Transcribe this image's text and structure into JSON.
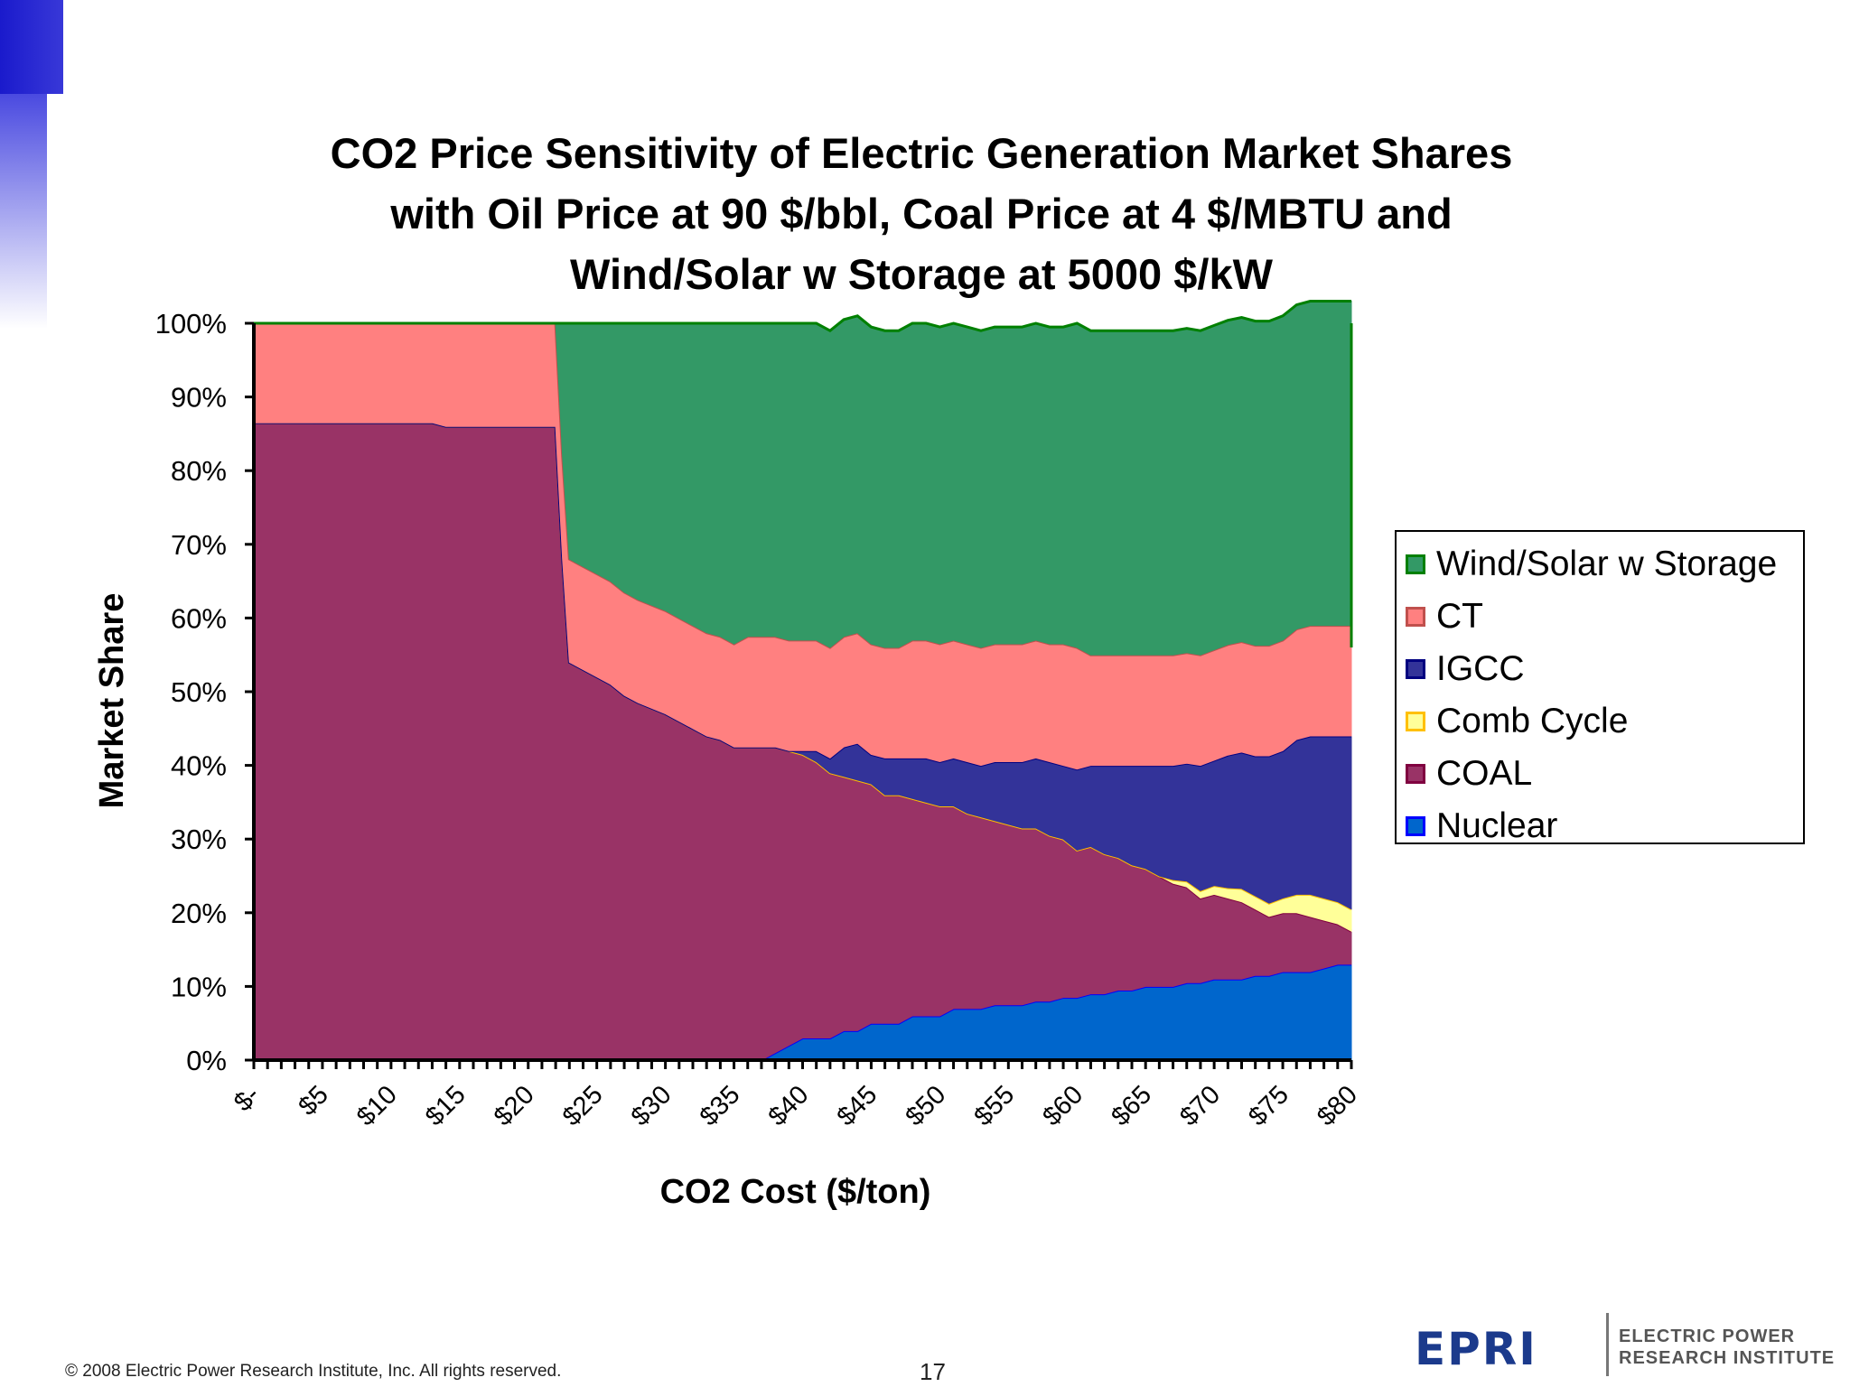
{
  "chart_data": {
    "type": "area",
    "stacked": true,
    "title": [
      "CO2 Price Sensitivity of Electric Generation Market Shares",
      "with Oil Price at 90 $/bbl, Coal Price at 4 $/MBTU and",
      "Wind/Solar w Storage at 5000 $/kW"
    ],
    "xlabel": "CO2 Cost ($/ton)",
    "ylabel": "Market Share",
    "xlim": [
      0,
      80
    ],
    "ylim": [
      0,
      100
    ],
    "x_tick_labels": [
      "$-",
      "$5",
      "$10",
      "$15",
      "$20",
      "$25",
      "$30",
      "$35",
      "$40",
      "$45",
      "$50",
      "$55",
      "$60",
      "$65",
      "$70",
      "$75",
      "$80"
    ],
    "x_tick_values": [
      0,
      5,
      10,
      15,
      20,
      25,
      30,
      35,
      40,
      45,
      50,
      55,
      60,
      65,
      70,
      75,
      80
    ],
    "y_tick_labels": [
      "0%",
      "10%",
      "20%",
      "30%",
      "40%",
      "50%",
      "60%",
      "70%",
      "80%",
      "90%",
      "100%"
    ],
    "y_tick_values": [
      0,
      10,
      20,
      30,
      40,
      50,
      60,
      70,
      80,
      90,
      100
    ],
    "legend_position": "right",
    "x": [
      0,
      5,
      10,
      13,
      14,
      20,
      22,
      22.5,
      23,
      24,
      25,
      26,
      27,
      28,
      30,
      32,
      33,
      34,
      35,
      36,
      37,
      38,
      39,
      40,
      41,
      42,
      43,
      44,
      45,
      46,
      47,
      48,
      49,
      50,
      51,
      52,
      53,
      54,
      55,
      56,
      57,
      58,
      59,
      60,
      61,
      62,
      63,
      64,
      65,
      66,
      67,
      68,
      69,
      70,
      71,
      72,
      73,
      74,
      75,
      76,
      77,
      78,
      79,
      80
    ],
    "series": [
      {
        "name": "Nuclear",
        "color": "#0066cc",
        "values": [
          0,
          0,
          0,
          0,
          0,
          0,
          0,
          0,
          0,
          0,
          0,
          0,
          0,
          0,
          0,
          0,
          0,
          0,
          0,
          0,
          0,
          1,
          2,
          3,
          3,
          3,
          4,
          4,
          5,
          5,
          5,
          6,
          6,
          6,
          7,
          7,
          7,
          7.5,
          7.5,
          7.5,
          8,
          8,
          8.5,
          8.5,
          9,
          9,
          9.5,
          9.5,
          10,
          10,
          10,
          10.5,
          10.5,
          11,
          11,
          11,
          11.5,
          11.5,
          12,
          12,
          12,
          12.5,
          13,
          13
        ]
      },
      {
        "name": "COAL",
        "color": "#993366",
        "values": [
          86.5,
          86.5,
          86.5,
          86.5,
          86,
          86,
          86,
          68,
          54,
          53,
          52,
          51,
          49.5,
          48.5,
          47,
          45,
          44,
          43.5,
          42.5,
          42.5,
          42.5,
          41.5,
          40,
          38.5,
          37.5,
          36,
          34.5,
          34,
          32.5,
          31,
          31,
          29.5,
          29,
          28.5,
          27.5,
          26.5,
          26,
          25,
          24.5,
          24,
          23.5,
          22.5,
          21.5,
          20,
          20,
          19,
          18,
          17,
          16,
          15,
          14,
          13,
          11.5,
          11.5,
          11,
          10.5,
          9,
          8,
          8,
          8,
          7.5,
          6.5,
          5.5,
          4.5
        ]
      },
      {
        "name": "Comb Cycle",
        "color": "#ffff99",
        "values": [
          0,
          0,
          0,
          0,
          0,
          0,
          0,
          0,
          0,
          0,
          0,
          0,
          0,
          0,
          0,
          0,
          0,
          0,
          0,
          0,
          0,
          0,
          0,
          0,
          0,
          0,
          0,
          0,
          0,
          0,
          0,
          0,
          0,
          0,
          0,
          0,
          0,
          0,
          0,
          0,
          0,
          0,
          0,
          0,
          0,
          0,
          0,
          0,
          0,
          0,
          0.5,
          0.8,
          1,
          1.2,
          1.4,
          1.8,
          1.8,
          1.8,
          2,
          2.5,
          3,
          3,
          3,
          3
        ]
      },
      {
        "name": "IGCC",
        "color": "#333399",
        "values": [
          0,
          0,
          0,
          0,
          0,
          0,
          0,
          0,
          0,
          0,
          0,
          0,
          0,
          0,
          0,
          0,
          0,
          0,
          0,
          0,
          0,
          0,
          0,
          0.5,
          1.5,
          2,
          4,
          5,
          4,
          5,
          5,
          5.5,
          6,
          6,
          6.5,
          7,
          7,
          8,
          8.5,
          9,
          9.5,
          10,
          10,
          11,
          11,
          12,
          12.5,
          13.5,
          14,
          15,
          15.5,
          16,
          17,
          17,
          18,
          18.5,
          19,
          20,
          20,
          21,
          21.5,
          22,
          22.5,
          23.5
        ]
      },
      {
        "name": "CT",
        "color": "#ff8080",
        "values": [
          13.5,
          13.5,
          13.5,
          13.5,
          14,
          14,
          14,
          14,
          14,
          14,
          14,
          14,
          14,
          14,
          14,
          14,
          14,
          14,
          14,
          15,
          15,
          15,
          15,
          15,
          15,
          15,
          15,
          15,
          15,
          15,
          15,
          16,
          16,
          16,
          16,
          16,
          16,
          16,
          16,
          16,
          16,
          16,
          16.5,
          16.5,
          15,
          15,
          15,
          15,
          15,
          15,
          15,
          15,
          15,
          15,
          15,
          15,
          15,
          15,
          15,
          15,
          15,
          15,
          15,
          15
        ]
      },
      {
        "name": "Wind/Solar w Storage",
        "color": "#339966",
        "values": [
          0,
          0,
          0,
          0,
          0,
          0,
          0,
          18,
          32,
          33,
          34,
          35,
          36.5,
          37.5,
          39,
          41,
          42,
          42.5,
          43.5,
          42.5,
          42.5,
          42.5,
          43,
          43,
          43,
          43,
          43,
          43,
          43,
          43,
          43,
          43,
          43,
          43,
          43,
          43,
          43,
          43,
          43,
          43,
          43,
          43,
          43,
          44,
          44,
          44,
          44,
          44,
          44,
          44,
          44,
          44,
          44,
          44,
          44,
          44,
          44,
          44,
          44,
          44,
          44,
          44,
          44,
          44
        ]
      }
    ]
  },
  "legend_items": [
    {
      "label": "Wind/Solar w Storage",
      "fill": "#339966",
      "border": "#008000"
    },
    {
      "label": "CT",
      "fill": "#ff8080",
      "border": "#c0504d"
    },
    {
      "label": "IGCC",
      "fill": "#333399",
      "border": "#000080"
    },
    {
      "label": "Comb Cycle",
      "fill": "#ffff99",
      "border": "#ffc000"
    },
    {
      "label": "COAL",
      "fill": "#993366",
      "border": "#800040"
    },
    {
      "label": "Nuclear",
      "fill": "#0066cc",
      "border": "#0000ff"
    }
  ],
  "footer": {
    "copyright": "© 2008 Electric Power Research Institute, Inc. All rights reserved.",
    "page_number": "17"
  },
  "logo": {
    "mark": "EPRI",
    "line1": "ELECTRIC POWER",
    "line2": "RESEARCH INSTITUTE"
  }
}
